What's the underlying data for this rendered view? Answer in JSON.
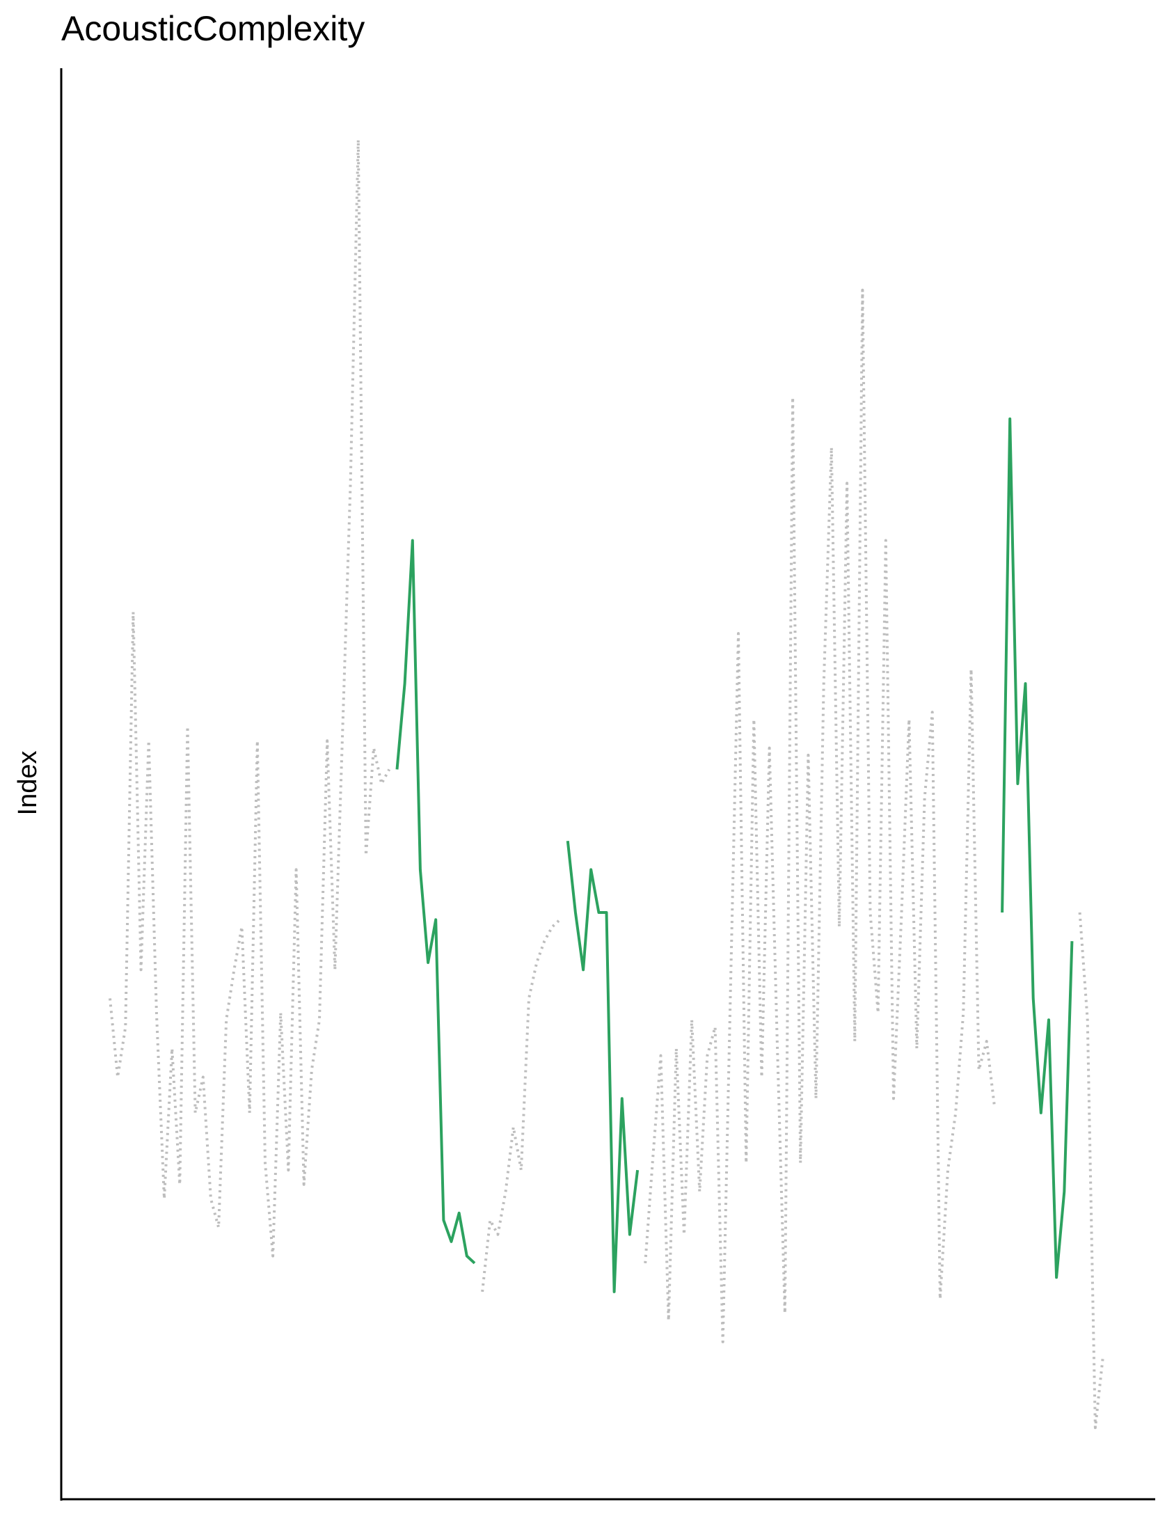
{
  "chart_data": {
    "type": "line",
    "title": "AcousticComplexity",
    "y_label": "Index",
    "ylim": [
      0,
      100
    ],
    "series": [
      {
        "name": null,
        "color": "#bdbdbd",
        "style": "dotted",
        "values": [
          35,
          29.5,
          33,
          62,
          37,
          53,
          34,
          21,
          31.5,
          22,
          54,
          27,
          29.5,
          21,
          19,
          33.5,
          37,
          40,
          27,
          53,
          23.5,
          17,
          34,
          23,
          44,
          22,
          30,
          33.5,
          53,
          37,
          54,
          71,
          95,
          45,
          52.5,
          50,
          51,
          null,
          null,
          null,
          null,
          null,
          null,
          null,
          null,
          null,
          null,
          null,
          14.5,
          19.5,
          18.5,
          21.5,
          26,
          23,
          35,
          37.5,
          39,
          40,
          40.5,
          null,
          null,
          null,
          null,
          null,
          null,
          null,
          null,
          null,
          null,
          16.5,
          24,
          31,
          12.5,
          31.5,
          18.5,
          33.5,
          21.5,
          31,
          33,
          11,
          36,
          60.5,
          23.5,
          54.5,
          29.5,
          52.5,
          32,
          13,
          77,
          23.5,
          52,
          28,
          57,
          73.5,
          40,
          71,
          32,
          84.5,
          41,
          34,
          67,
          28,
          40.5,
          54.5,
          31.5,
          49,
          55,
          14,
          23,
          27,
          34,
          58,
          30,
          32,
          27.5,
          null,
          null,
          null,
          null,
          null,
          null,
          null,
          null,
          null,
          null,
          41,
          33.5,
          5,
          10
        ]
      },
      {
        "name": null,
        "color": "#2ca25f",
        "style": "solid",
        "values": [
          null,
          null,
          null,
          null,
          null,
          null,
          null,
          null,
          null,
          null,
          null,
          null,
          null,
          null,
          null,
          null,
          null,
          null,
          null,
          null,
          null,
          null,
          null,
          null,
          null,
          null,
          null,
          null,
          null,
          null,
          null,
          null,
          null,
          null,
          null,
          null,
          null,
          51,
          57,
          67,
          44,
          37.5,
          40.5,
          19.5,
          18,
          20,
          17,
          16.5,
          null,
          null,
          null,
          null,
          null,
          null,
          null,
          null,
          null,
          null,
          null,
          46,
          41,
          37,
          44,
          41,
          41,
          14.5,
          28,
          18.5,
          23,
          null,
          null,
          null,
          null,
          null,
          null,
          null,
          null,
          null,
          null,
          null,
          null,
          null,
          null,
          null,
          null,
          null,
          null,
          null,
          null,
          null,
          null,
          null,
          null,
          null,
          null,
          null,
          null,
          null,
          null,
          null,
          null,
          null,
          null,
          null,
          null,
          null,
          null,
          null,
          null,
          null,
          null,
          null,
          null,
          null,
          null,
          41,
          75.5,
          50,
          57,
          35,
          27,
          33.5,
          15.5,
          21.5,
          39,
          null,
          null,
          null,
          null
        ]
      }
    ]
  }
}
